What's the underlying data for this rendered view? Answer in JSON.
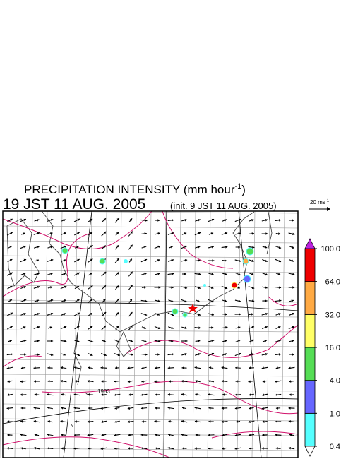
{
  "header": {
    "title_main": "PRECIPITATION INTENSITY (mm hour",
    "title_sup": "-1",
    "title_end": ")",
    "time": "19 JST 11 AUG. 2005",
    "init": "(init. 9 JST 11 AUG. 2005)"
  },
  "vector_scale": {
    "label": "20 ms",
    "sup": "-1"
  },
  "map": {
    "contour_label": "1983"
  },
  "colorbar": {
    "levels": [
      {
        "value": 0.4,
        "label": "0.4"
      },
      {
        "value": 1,
        "label": "1.0"
      },
      {
        "value": 4,
        "label": "4.0"
      },
      {
        "value": 16,
        "label": "16.0"
      },
      {
        "value": 32,
        "label": "32.0"
      },
      {
        "value": 64,
        "label": "64.0"
      },
      {
        "value": 100,
        "label": "100.0"
      }
    ],
    "colors": [
      "#55ffff",
      "#6666ff",
      "#55dd55",
      "#ffff66",
      "#ffaa44",
      "#ee0000"
    ],
    "over_color": "#bb22dd",
    "under_color": "#ffffff"
  }
}
